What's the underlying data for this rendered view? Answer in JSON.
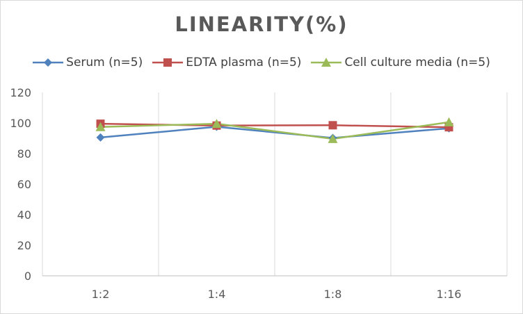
{
  "chart_data": {
    "type": "line",
    "title": "LINEARITY(%)",
    "xlabel": "",
    "ylabel": "",
    "categories": [
      "1:2",
      "1:4",
      "1:8",
      "1:16"
    ],
    "ylim": [
      0,
      120
    ],
    "yticks": [
      0,
      20,
      40,
      60,
      80,
      100,
      120
    ],
    "grid": "vertical",
    "legend_position": "top",
    "series": [
      {
        "name": "Serum (n=5)",
        "values": [
          90.5,
          97.5,
          90.2,
          96.5
        ],
        "color": "#4f81bd",
        "marker": "diamond"
      },
      {
        "name": "EDTA plasma (n=5)",
        "values": [
          99.5,
          98.3,
          98.5,
          97.2
        ],
        "color": "#c0504d",
        "marker": "square"
      },
      {
        "name": "Cell culture media (n=5)",
        "values": [
          97.4,
          99.5,
          89.6,
          100.5
        ],
        "color": "#9bbb59",
        "marker": "triangle"
      }
    ]
  }
}
